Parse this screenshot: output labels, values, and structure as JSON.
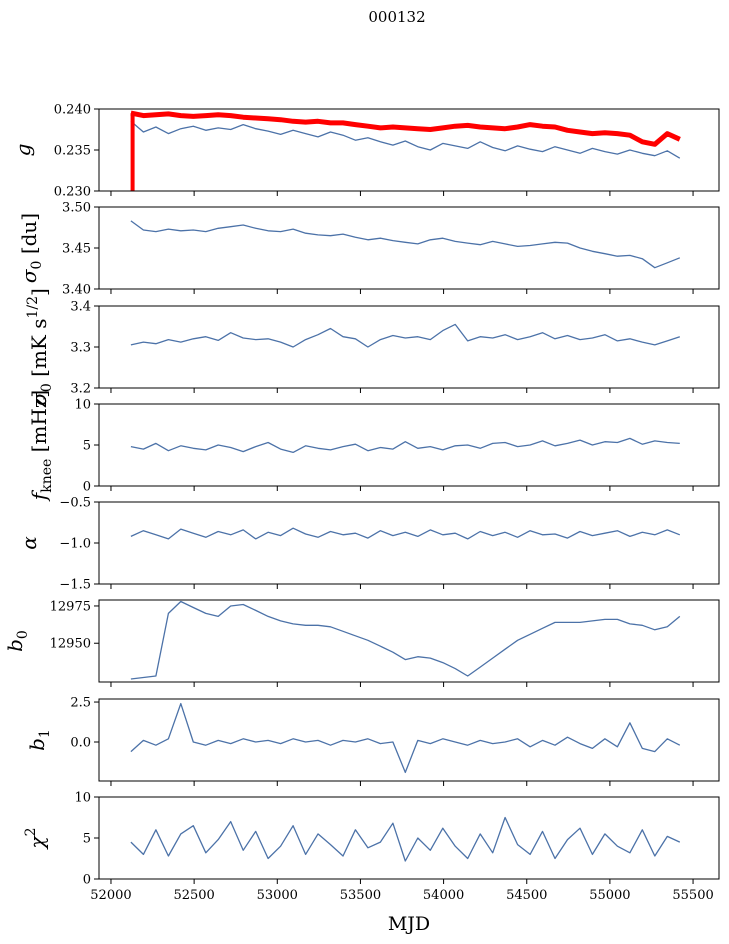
{
  "chart_data": {
    "type": "line",
    "title": "000132",
    "xlabel": "MJD",
    "xlim": [
      51928,
      55656
    ],
    "xticks": [
      52000,
      52500,
      53000,
      53500,
      54000,
      54500,
      55000,
      55500
    ],
    "x": [
      52120,
      52195,
      52270,
      52345,
      52420,
      52495,
      52570,
      52645,
      52720,
      52795,
      52870,
      52945,
      53020,
      53095,
      53170,
      53245,
      53320,
      53395,
      53470,
      53545,
      53620,
      53695,
      53770,
      53845,
      53920,
      53995,
      54070,
      54145,
      54220,
      54295,
      54370,
      54445,
      54520,
      54595,
      54670,
      54745,
      54820,
      54895,
      54970,
      55045,
      55120,
      55195,
      55270,
      55345,
      55420
    ],
    "colors": {
      "series": "#4c72a8",
      "reference": "#ff0000"
    },
    "panels": [
      {
        "ylabel": {
          "base": "g",
          "sub": "",
          "sup": "",
          "unit": ""
        },
        "ylim": [
          0.23,
          0.24
        ],
        "yticks": [
          "0.230",
          "0.235",
          "0.240"
        ],
        "series": [
          {
            "name": "g",
            "color": "#4c72a8",
            "values": [
              0.2385,
              0.2372,
              0.2378,
              0.237,
              0.2376,
              0.2379,
              0.2374,
              0.2377,
              0.2375,
              0.2381,
              0.2376,
              0.2373,
              0.2369,
              0.2374,
              0.237,
              0.2366,
              0.2372,
              0.2368,
              0.2362,
              0.2365,
              0.236,
              0.2356,
              0.2361,
              0.2354,
              0.235,
              0.2358,
              0.2355,
              0.2352,
              0.236,
              0.2353,
              0.2349,
              0.2355,
              0.2351,
              0.2348,
              0.2354,
              0.235,
              0.2346,
              0.2352,
              0.2348,
              0.2345,
              0.235,
              0.2346,
              0.2343,
              0.2349,
              0.234
            ]
          },
          {
            "name": "g reference",
            "color": "#ff0000",
            "thick": true,
            "spikes": [
              {
                "x": 52130,
                "y": 0.229
              }
            ],
            "values": [
              0.2395,
              0.2392,
              0.2393,
              0.2394,
              0.2392,
              0.2391,
              0.2392,
              0.2393,
              0.2392,
              0.239,
              0.2389,
              0.2388,
              0.2387,
              0.2385,
              0.2384,
              0.2385,
              0.2383,
              0.2383,
              0.2381,
              0.2379,
              0.2377,
              0.2378,
              0.2377,
              0.2376,
              0.2375,
              0.2377,
              0.2379,
              0.238,
              0.2378,
              0.2377,
              0.2376,
              0.2378,
              0.2381,
              0.2379,
              0.2378,
              0.2374,
              0.2372,
              0.237,
              0.2371,
              0.237,
              0.2368,
              0.236,
              0.2357,
              0.237,
              0.2363
            ]
          }
        ]
      },
      {
        "ylabel": {
          "base": "σ",
          "sub": "0",
          "sup": "",
          "unit": " [du]"
        },
        "ylim": [
          3.4,
          3.5
        ],
        "yticks": [
          "3.40",
          "3.45",
          "3.50"
        ],
        "series": [
          {
            "name": "sigma0 du",
            "color": "#4c72a8",
            "values": [
              3.483,
              3.472,
              3.47,
              3.473,
              3.471,
              3.472,
              3.47,
              3.474,
              3.476,
              3.478,
              3.474,
              3.471,
              3.47,
              3.473,
              3.468,
              3.466,
              3.465,
              3.467,
              3.463,
              3.46,
              3.462,
              3.459,
              3.457,
              3.455,
              3.46,
              3.462,
              3.458,
              3.456,
              3.454,
              3.458,
              3.455,
              3.452,
              3.453,
              3.455,
              3.457,
              3.456,
              3.45,
              3.446,
              3.443,
              3.44,
              3.441,
              3.437,
              3.426,
              3.432,
              3.438
            ]
          }
        ]
      },
      {
        "ylabel": {
          "base": "σ",
          "sub": "0",
          "sup": "",
          "unit": " [mK s",
          "unitsup": "1/2",
          "unitend": "]"
        },
        "ylim": [
          3.2,
          3.4
        ],
        "yticks": [
          "3.2",
          "3.3",
          "3.4"
        ],
        "series": [
          {
            "name": "sigma0 mK",
            "color": "#4c72a8",
            "values": [
              3.305,
              3.312,
              3.308,
              3.318,
              3.312,
              3.32,
              3.325,
              3.316,
              3.335,
              3.322,
              3.318,
              3.32,
              3.312,
              3.3,
              3.318,
              3.33,
              3.345,
              3.325,
              3.32,
              3.3,
              3.318,
              3.328,
              3.322,
              3.325,
              3.318,
              3.34,
              3.355,
              3.315,
              3.325,
              3.322,
              3.33,
              3.318,
              3.325,
              3.335,
              3.32,
              3.328,
              3.318,
              3.322,
              3.33,
              3.315,
              3.32,
              3.312,
              3.305,
              3.315,
              3.325
            ]
          }
        ]
      },
      {
        "ylabel": {
          "base": "f",
          "sub": "knee",
          "sup": "",
          "unit": " [mHz]"
        },
        "ylim": [
          0,
          10
        ],
        "yticks": [
          "0",
          "5",
          "10"
        ],
        "series": [
          {
            "name": "fknee",
            "color": "#4c72a8",
            "values": [
              4.8,
              4.5,
              5.2,
              4.3,
              4.9,
              4.6,
              4.4,
              5.0,
              4.7,
              4.2,
              4.8,
              5.3,
              4.5,
              4.1,
              4.9,
              4.6,
              4.4,
              4.8,
              5.1,
              4.3,
              4.7,
              4.5,
              5.4,
              4.6,
              4.8,
              4.4,
              4.9,
              5.0,
              4.6,
              5.2,
              5.3,
              4.8,
              5.0,
              5.5,
              4.9,
              5.2,
              5.6,
              5.0,
              5.4,
              5.3,
              5.8,
              5.1,
              5.5,
              5.3,
              5.2
            ]
          }
        ]
      },
      {
        "ylabel": {
          "base": "α",
          "sub": "",
          "sup": "",
          "unit": ""
        },
        "ylim": [
          -1.5,
          -0.5
        ],
        "yticks": [
          "−1.5",
          "−1.0",
          "−0.5"
        ],
        "series": [
          {
            "name": "alpha",
            "color": "#4c72a8",
            "values": [
              -0.92,
              -0.85,
              -0.9,
              -0.95,
              -0.83,
              -0.88,
              -0.93,
              -0.86,
              -0.9,
              -0.84,
              -0.95,
              -0.87,
              -0.91,
              -0.82,
              -0.89,
              -0.93,
              -0.86,
              -0.9,
              -0.88,
              -0.94,
              -0.85,
              -0.91,
              -0.87,
              -0.92,
              -0.84,
              -0.9,
              -0.88,
              -0.95,
              -0.86,
              -0.91,
              -0.87,
              -0.93,
              -0.85,
              -0.9,
              -0.89,
              -0.94,
              -0.86,
              -0.91,
              -0.88,
              -0.85,
              -0.92,
              -0.87,
              -0.9,
              -0.84,
              -0.9
            ]
          }
        ]
      },
      {
        "ylabel": {
          "base": "b",
          "sub": "0",
          "sup": "",
          "unit": ""
        },
        "ylim": [
          12924,
          12979
        ],
        "yticks": [
          "12950",
          "12975"
        ],
        "ytickvals": [
          12950,
          12975
        ],
        "series": [
          {
            "name": "b0",
            "color": "#4c72a8",
            "values": [
              12926,
              12927,
              12928,
              12970,
              12978,
              12974,
              12970,
              12968,
              12975,
              12976,
              12972,
              12968,
              12965,
              12963,
              12962,
              12962,
              12961,
              12958,
              12955,
              12952,
              12948,
              12944,
              12939,
              12941,
              12940,
              12937,
              12933,
              12928,
              12934,
              12940,
              12946,
              12952,
              12956,
              12960,
              12964,
              12964,
              12964,
              12965,
              12966,
              12966,
              12963,
              12962,
              12959,
              12961,
              12968
            ]
          }
        ]
      },
      {
        "ylabel": {
          "base": "b",
          "sub": "1",
          "sup": "",
          "unit": ""
        },
        "ylim": [
          -2.44,
          2.69
        ],
        "yticks": [
          "0.0",
          "2.5"
        ],
        "ytickvals": [
          0.0,
          2.5
        ],
        "series": [
          {
            "name": "b1",
            "color": "#4c72a8",
            "values": [
              -0.6,
              0.1,
              -0.2,
              0.2,
              2.4,
              0.0,
              -0.2,
              0.1,
              -0.1,
              0.2,
              0.0,
              0.1,
              -0.1,
              0.2,
              0.0,
              0.1,
              -0.2,
              0.1,
              0.0,
              0.2,
              -0.1,
              0.0,
              -1.9,
              0.1,
              -0.1,
              0.2,
              0.0,
              -0.2,
              0.1,
              -0.1,
              0.0,
              0.2,
              -0.3,
              0.1,
              -0.2,
              0.3,
              -0.1,
              -0.4,
              0.2,
              -0.3,
              1.2,
              -0.4,
              -0.6,
              0.2,
              -0.2
            ]
          }
        ]
      },
      {
        "ylabel": {
          "base": "χ",
          "sub": "",
          "sup": "2",
          "unit": ""
        },
        "ylim": [
          0,
          10
        ],
        "yticks": [
          "0",
          "5",
          "10"
        ],
        "series": [
          {
            "name": "chi2",
            "color": "#4c72a8",
            "values": [
              4.5,
              3.0,
              6.0,
              2.8,
              5.5,
              6.5,
              3.2,
              4.8,
              7.0,
              3.5,
              5.8,
              2.5,
              4.0,
              6.5,
              3.0,
              5.5,
              4.2,
              2.8,
              6.0,
              3.8,
              4.5,
              6.8,
              2.2,
              5.0,
              3.5,
              6.2,
              4.0,
              2.5,
              5.5,
              3.2,
              7.5,
              4.2,
              3.0,
              5.8,
              2.5,
              4.8,
              6.2,
              3.0,
              5.5,
              4.0,
              3.2,
              6.0,
              2.8,
              5.2,
              4.5
            ]
          }
        ]
      }
    ]
  }
}
